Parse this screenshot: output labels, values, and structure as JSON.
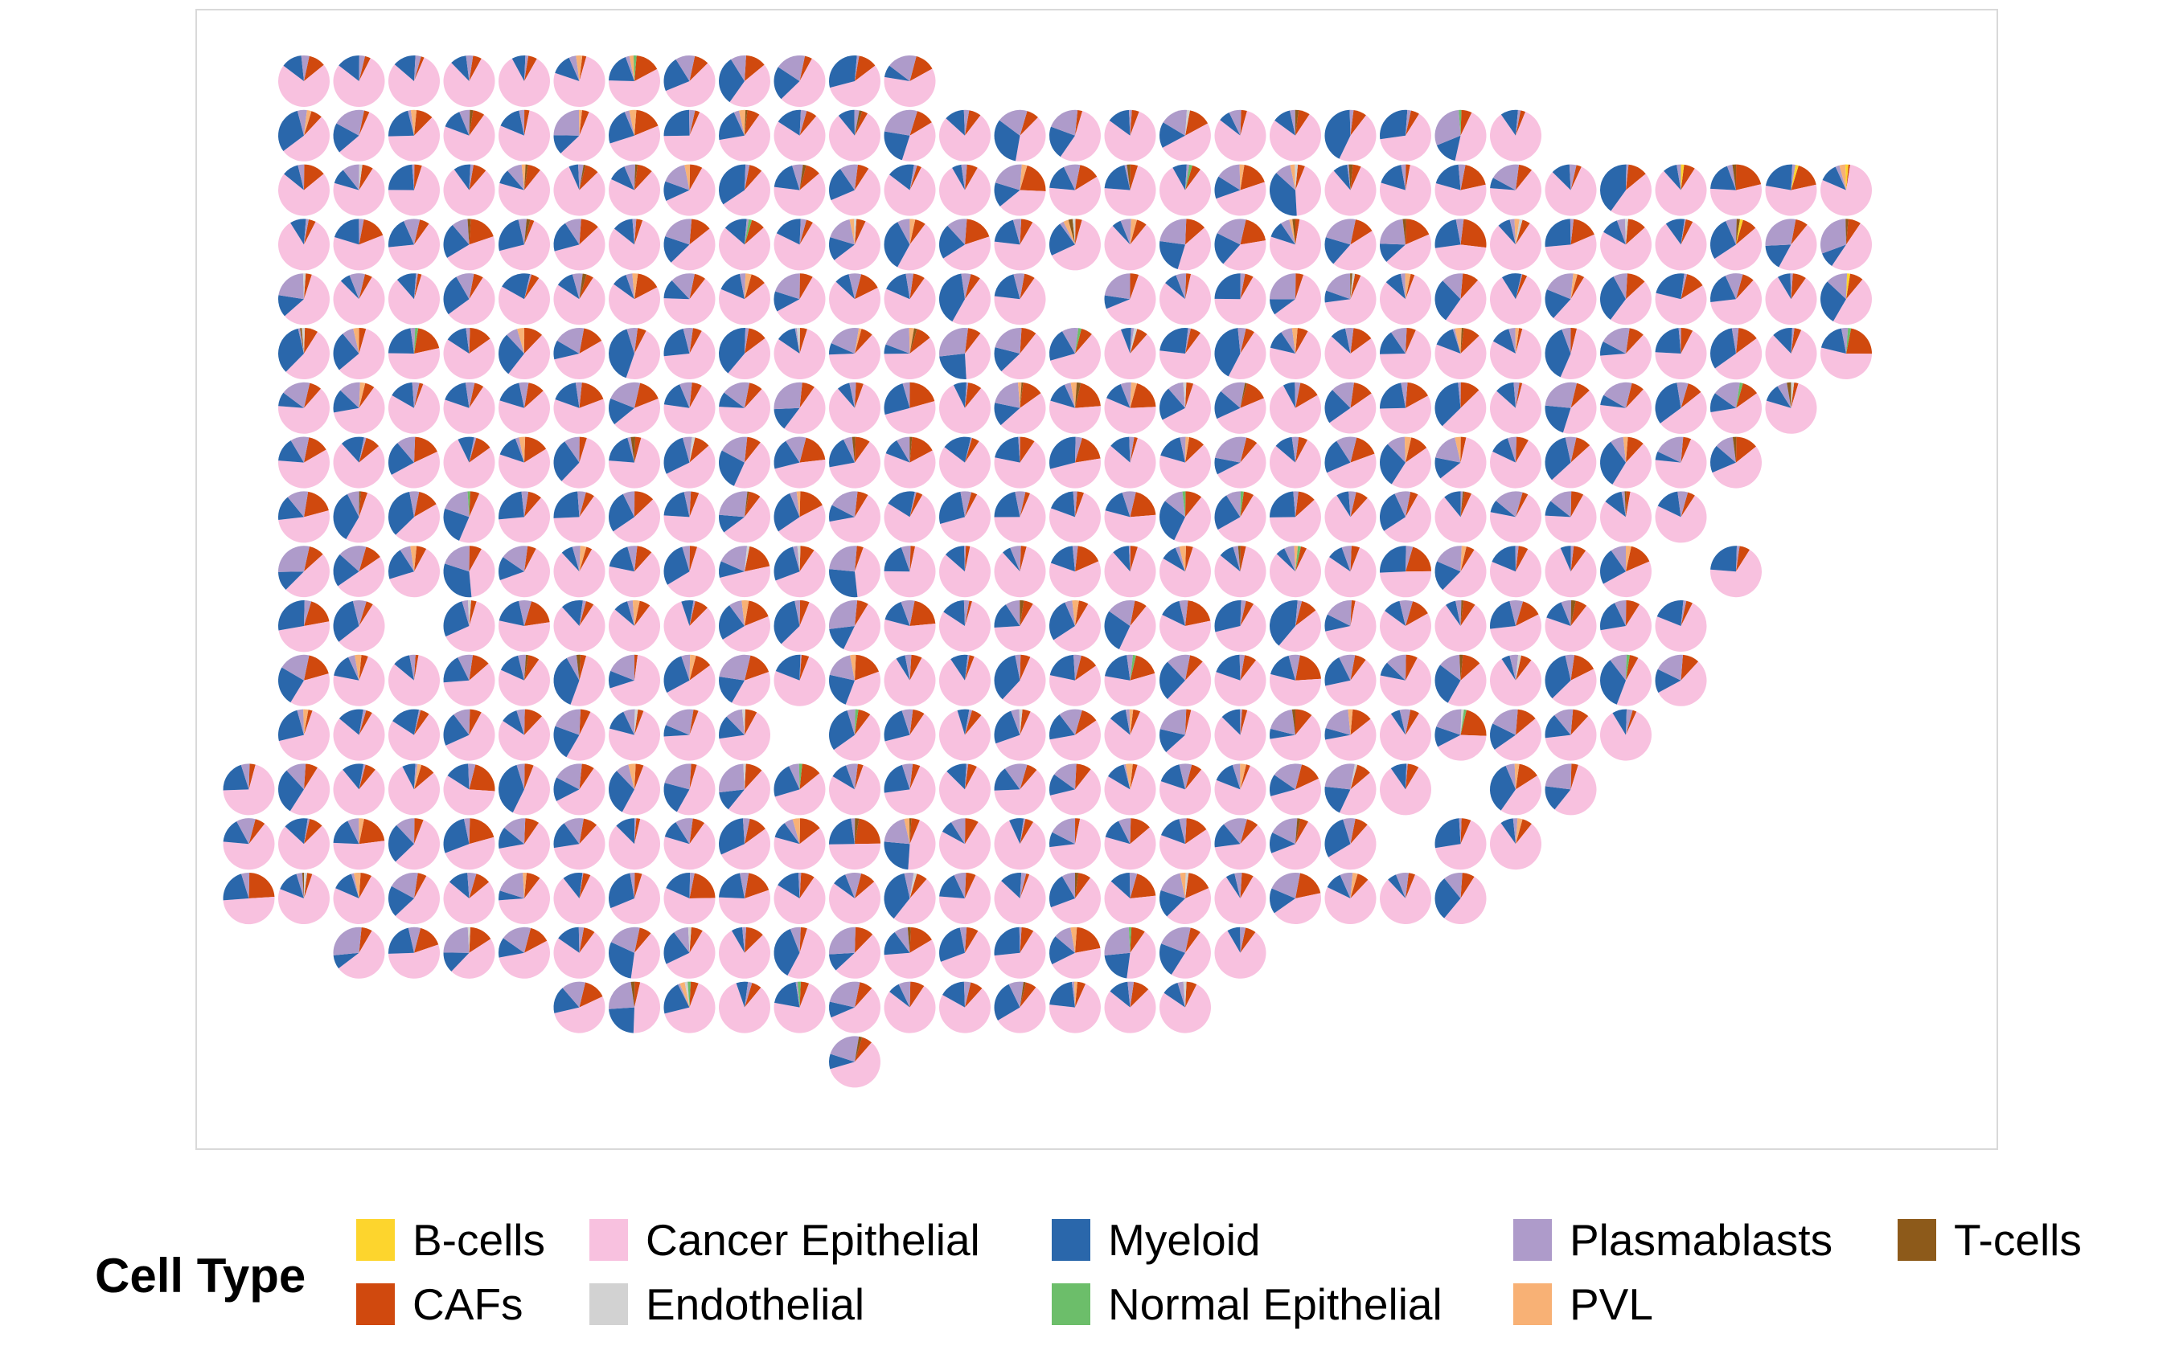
{
  "chart_data": {
    "type": "scatterpie",
    "title": "",
    "xlabel": "",
    "ylabel": "",
    "grid": false,
    "legend": {
      "title": "Cell Type",
      "placement": "bottom",
      "entries": [
        {
          "label": "B-cells",
          "color": "#FDD52D"
        },
        {
          "label": "CAFs",
          "color": "#D0490E"
        },
        {
          "label": "Cancer Epithelial",
          "color": "#F8C1DF"
        },
        {
          "label": "Endothelial",
          "color": "#D2D2D2"
        },
        {
          "label": "Myeloid",
          "color": "#2A67AB"
        },
        {
          "label": "Normal Epithelial",
          "color": "#6CBE6A"
        },
        {
          "label": "Plasmablasts",
          "color": "#AE9BCA"
        },
        {
          "label": "PVL",
          "color": "#F8B175"
        },
        {
          "label": "T-cells",
          "color": "#8D5A1A"
        }
      ]
    },
    "grid_spots": {
      "columns": 29,
      "rows": 19,
      "rows_occupied": [
        [
          1,
          12
        ],
        [
          1,
          23
        ],
        [
          1,
          29
        ],
        [
          1,
          29
        ],
        [
          1,
          29
        ],
        [
          1,
          29
        ],
        [
          1,
          28
        ],
        [
          1,
          27
        ],
        [
          1,
          26
        ],
        [
          1,
          27
        ],
        [
          1,
          26
        ],
        [
          1,
          26
        ],
        [
          1,
          25
        ],
        [
          0,
          24
        ],
        [
          0,
          23
        ],
        [
          0,
          22
        ],
        [
          2,
          18
        ],
        [
          6,
          17
        ],
        [
          11,
          11
        ]
      ],
      "missing_spots": [
        [
          4,
          15
        ],
        [
          9,
          26
        ],
        [
          10,
          3
        ],
        [
          12,
          10
        ],
        [
          13,
          22
        ],
        [
          14,
          21
        ]
      ]
    }
  }
}
